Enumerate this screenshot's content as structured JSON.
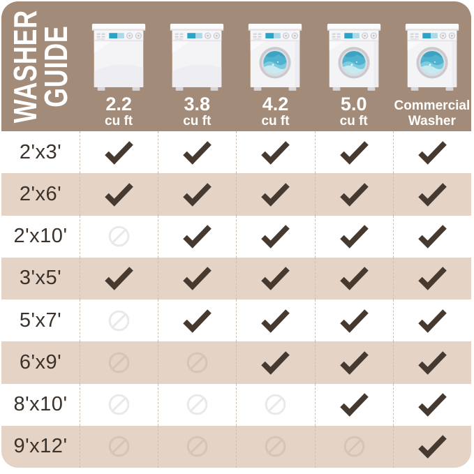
{
  "header": {
    "title_line1": "WASHER",
    "title_line2": "GUIDE",
    "columns": [
      {
        "line1": "2.2",
        "line2": "cu ft",
        "style": "capacity",
        "washer": "top-load"
      },
      {
        "line1": "3.8",
        "line2": "cu ft",
        "style": "capacity",
        "washer": "top-load"
      },
      {
        "line1": "4.2",
        "line2": "cu ft",
        "style": "capacity",
        "washer": "front-load"
      },
      {
        "line1": "5.0",
        "line2": "cu ft",
        "style": "capacity",
        "washer": "front-load"
      },
      {
        "line1": "Commercial",
        "line2": "Washer",
        "style": "name",
        "washer": "front-load"
      }
    ]
  },
  "table": {
    "rows": [
      {
        "label": "2'x3'",
        "cells": [
          "check",
          "check",
          "check",
          "check",
          "check"
        ]
      },
      {
        "label": "2'x6'",
        "cells": [
          "check",
          "check",
          "check",
          "check",
          "check"
        ]
      },
      {
        "label": "2'x10'",
        "cells": [
          "no",
          "check",
          "check",
          "check",
          "check"
        ]
      },
      {
        "label": "3'x5'",
        "cells": [
          "check",
          "check",
          "check",
          "check",
          "check"
        ]
      },
      {
        "label": "5'x7'",
        "cells": [
          "no",
          "check",
          "check",
          "check",
          "check"
        ]
      },
      {
        "label": "6'x9'",
        "cells": [
          "no",
          "no",
          "check",
          "check",
          "check"
        ]
      },
      {
        "label": "8'x10'",
        "cells": [
          "no",
          "no",
          "no",
          "check",
          "check"
        ]
      },
      {
        "label": "9'x12'",
        "cells": [
          "no",
          "no",
          "no",
          "no",
          "check"
        ]
      }
    ]
  },
  "chart_data": {
    "type": "table",
    "title": "WASHER GUIDE",
    "rows": [
      "2'x3'",
      "2'x6'",
      "2'x10'",
      "3'x5'",
      "5'x7'",
      "6'x9'",
      "8'x10'",
      "9'x12'"
    ],
    "columns": [
      "2.2 cu ft",
      "3.8 cu ft",
      "4.2 cu ft",
      "5.0 cu ft",
      "Commercial Washer"
    ],
    "values": [
      [
        true,
        true,
        true,
        true,
        true
      ],
      [
        true,
        true,
        true,
        true,
        true
      ],
      [
        false,
        true,
        true,
        true,
        true
      ],
      [
        true,
        true,
        true,
        true,
        true
      ],
      [
        false,
        true,
        true,
        true,
        true
      ],
      [
        false,
        false,
        true,
        true,
        true
      ],
      [
        false,
        false,
        false,
        true,
        true
      ],
      [
        false,
        false,
        false,
        false,
        true
      ]
    ],
    "cell_legend": {
      "true": "checkmark (fits in washer)",
      "false": "prohibited circle (does not fit)"
    }
  },
  "colors": {
    "header_bg": "#a38b79",
    "row_alt_bg": "#e5d3c6",
    "row_bg": "#ffffff",
    "check": "#46392f",
    "no_on_white": "#ebe9e7",
    "no_on_alt": "#d8c4b4",
    "divider": "#cdbfb1",
    "label_text": "#3a322b"
  }
}
